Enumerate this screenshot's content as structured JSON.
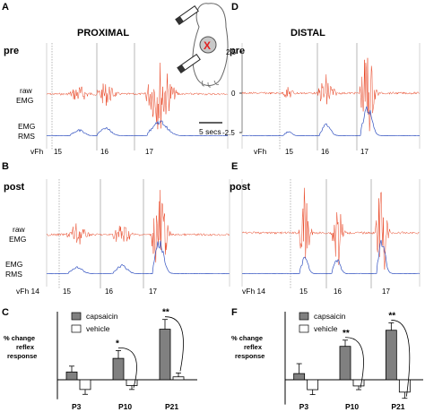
{
  "panels": {
    "A": {
      "letter": "A",
      "title": "PROXIMAL",
      "condition": "pre",
      "raw_label": [
        "raw",
        "EMG"
      ],
      "rms_label": [
        "EMG",
        "RMS"
      ],
      "vfh_label": "vFh",
      "stim_labels": [
        "15",
        "16",
        "17"
      ],
      "scale_label": "5 secs"
    },
    "B": {
      "letter": "B",
      "condition": "post",
      "raw_label": [
        "raw",
        "EMG"
      ],
      "rms_label": [
        "EMG",
        "RMS"
      ],
      "vfh_label": "vFh 14",
      "stim_labels": [
        "15",
        "16",
        "17"
      ]
    },
    "D": {
      "letter": "D",
      "title": "DISTAL",
      "condition": "pre",
      "y_ticks": [
        "2.5",
        "0",
        "-2.5"
      ],
      "vfh_label": "vFh",
      "stim_labels": [
        "15",
        "16",
        "17"
      ]
    },
    "E": {
      "letter": "E",
      "condition": "post",
      "vfh_label": "vFh 14",
      "stim_labels": [
        "15",
        "16",
        "17"
      ]
    }
  },
  "paw_marker": "X",
  "colors": {
    "raw": "#e8401e",
    "rms": "#3050c0",
    "bar_capsaicin": "#808080",
    "bar_vehicle": "#ffffff"
  },
  "chart_data": [
    {
      "id": "C",
      "letter": "C",
      "type": "bar",
      "ylabel": [
        "% change",
        "reflex",
        "response"
      ],
      "categories": [
        "P3",
        "P10",
        "P21"
      ],
      "series": [
        {
          "name": "capsaicin",
          "values": [
            8,
            22,
            52
          ],
          "errors": [
            6,
            8,
            10
          ]
        },
        {
          "name": "vehicle",
          "values": [
            -10,
            -6,
            3
          ],
          "errors": [
            5,
            4,
            4
          ]
        }
      ],
      "significance": [
        {
          "category": "P10",
          "label": "*"
        },
        {
          "category": "P21",
          "label": "**"
        }
      ],
      "ylim": [
        -20,
        70
      ],
      "legend_position": "top-right"
    },
    {
      "id": "F",
      "letter": "F",
      "type": "bar",
      "ylabel": [
        "% change",
        "reflex",
        "response"
      ],
      "categories": [
        "P3",
        "P10",
        "P21"
      ],
      "series": [
        {
          "name": "capsaicin",
          "values": [
            5,
            27,
            40
          ],
          "errors": [
            8,
            5,
            6
          ]
        },
        {
          "name": "vehicle",
          "values": [
            -8,
            -5,
            -10
          ],
          "errors": [
            4,
            3,
            5
          ]
        }
      ],
      "significance": [
        {
          "category": "P10",
          "label": "**"
        },
        {
          "category": "P21",
          "label": "**"
        }
      ],
      "ylim": [
        -20,
        55
      ],
      "legend_position": "top-right"
    }
  ]
}
